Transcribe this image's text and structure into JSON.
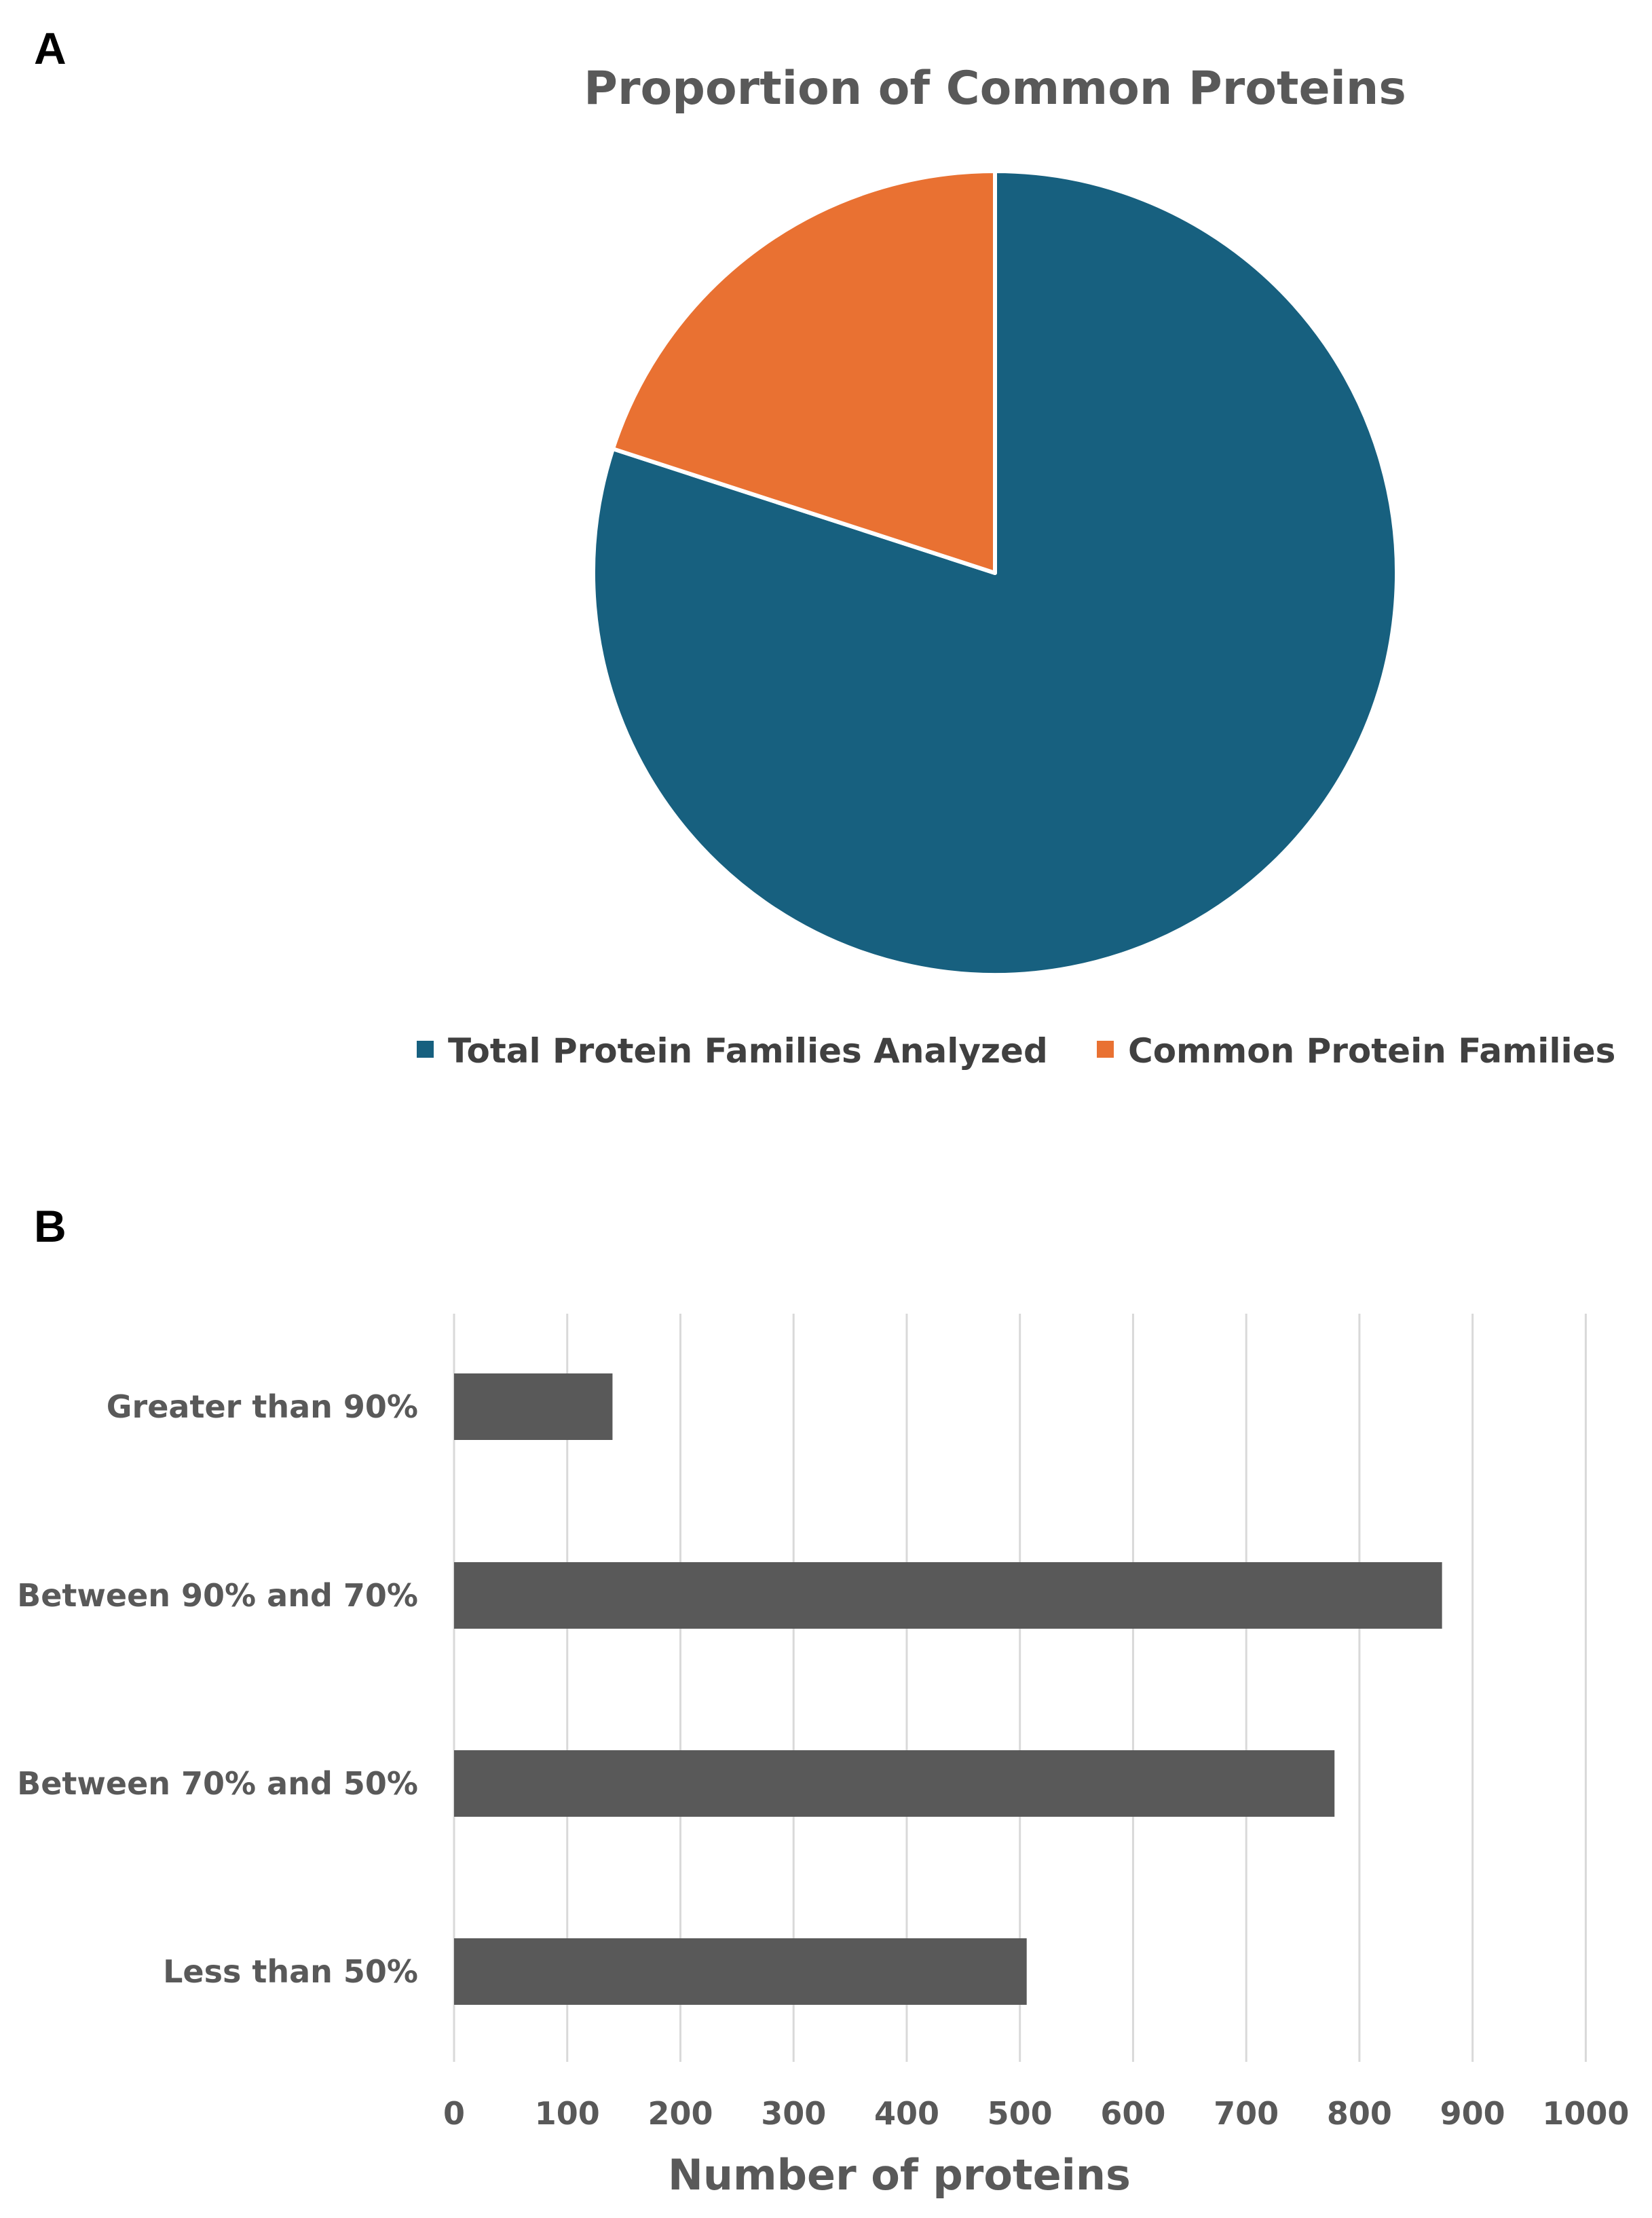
{
  "panels": {
    "a": "A",
    "b": "B"
  },
  "chart_data": [
    {
      "type": "pie",
      "title": "Proportion of Common Proteins",
      "slices": [
        {
          "label": "Total Protein Families Analyzed",
          "value": 80,
          "color": "#17607f"
        },
        {
          "label": "Common Protein Families",
          "value": 20,
          "color": "#e97132"
        }
      ],
      "legend_position": "bottom",
      "slice_border_color": "#ffffff"
    },
    {
      "type": "bar",
      "orientation": "horizontal",
      "categories": [
        "Greater than 90%",
        "Between 90% and 70%",
        "Between 70% and 50%",
        "Less than 50%"
      ],
      "values": [
        140,
        873,
        778,
        506
      ],
      "xlabel": "Number of proteins",
      "xlim": [
        0,
        1000
      ],
      "xticks": [
        0,
        100,
        200,
        300,
        400,
        500,
        600,
        700,
        800,
        900,
        1000
      ],
      "grid": "vertical",
      "bar_color": "#595959",
      "grid_color": "#d9d9d9"
    }
  ]
}
